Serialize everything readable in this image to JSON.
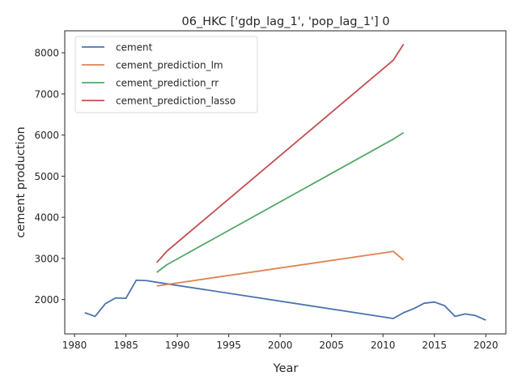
{
  "chart_data": {
    "type": "line",
    "title": "06_HKC ['gdp_lag_1', 'pop_lag_1'] 0",
    "xlabel": "Year",
    "ylabel": "cement production",
    "xlim": [
      1979.05,
      2021.95
    ],
    "ylim": [
      1165,
      8535
    ],
    "xticks": [
      1980,
      1985,
      1990,
      1995,
      2000,
      2005,
      2010,
      2015,
      2020
    ],
    "yticks": [
      2000,
      3000,
      4000,
      5000,
      6000,
      7000,
      8000
    ],
    "grid": false,
    "legend_position": "upper-left",
    "series": [
      {
        "name": "cement",
        "color": "#4c72b0",
        "points": [
          [
            1981,
            1680
          ],
          [
            1982,
            1590
          ],
          [
            1983,
            1900
          ],
          [
            1984,
            2040
          ],
          [
            1985,
            2030
          ],
          [
            1986,
            2470
          ],
          [
            1987,
            2460
          ],
          [
            1988,
            2420
          ],
          [
            2011,
            1540
          ],
          [
            2012,
            1680
          ],
          [
            2013,
            1780
          ],
          [
            2014,
            1910
          ],
          [
            2015,
            1940
          ],
          [
            2016,
            1850
          ],
          [
            2017,
            1590
          ],
          [
            2018,
            1650
          ],
          [
            2019,
            1610
          ],
          [
            2020,
            1500
          ]
        ]
      },
      {
        "name": "cement_prediction_lm",
        "color": "#dd8452",
        "points": [
          [
            1988,
            2330
          ],
          [
            2011,
            3170
          ],
          [
            2012,
            2960
          ]
        ]
      },
      {
        "name": "cement_prediction_rr",
        "color": "#55a868",
        "points": [
          [
            1988,
            2660
          ],
          [
            1989,
            2850
          ],
          [
            2011,
            5900
          ],
          [
            2012,
            6060
          ]
        ]
      },
      {
        "name": "cement_prediction_lasso",
        "color": "#c44e52",
        "points": [
          [
            1988,
            2900
          ],
          [
            1989,
            3180
          ],
          [
            2011,
            7820
          ],
          [
            2012,
            8210
          ]
        ]
      }
    ]
  }
}
